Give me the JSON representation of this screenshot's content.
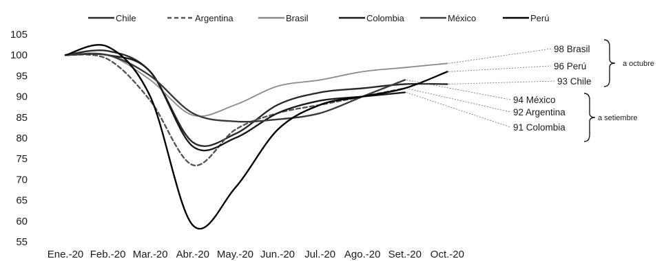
{
  "chart_data": {
    "type": "line",
    "categories": [
      "Ene.-20",
      "Feb.-20",
      "Mar.-20",
      "Abr.-20",
      "May.-20",
      "Jun.-20",
      "Jul.-20",
      "Ago.-20",
      "Set.-20",
      "Oct.-20"
    ],
    "ylim": [
      55,
      105
    ],
    "yticks": [
      55,
      60,
      65,
      70,
      75,
      80,
      85,
      90,
      95,
      100,
      105
    ],
    "grid": false,
    "legend_position": "top",
    "series": [
      {
        "name": "Chile",
        "color": "#2a2a2a",
        "dash": "",
        "values": [
          100,
          101,
          96,
          79,
          81,
          88,
          91,
          92,
          93,
          93
        ]
      },
      {
        "name": "Argentina",
        "color": "#555555",
        "dash": "6 4",
        "values": [
          100,
          99,
          89,
          73.5,
          82,
          86,
          88,
          90,
          92,
          null
        ]
      },
      {
        "name": "Brasil",
        "color": "#8a8a8a",
        "dash": "",
        "values": [
          100,
          100,
          94,
          85.5,
          88,
          92.5,
          94,
          96,
          97,
          98
        ]
      },
      {
        "name": "Colombia",
        "color": "#1a1a1a",
        "dash": "",
        "values": [
          100,
          100,
          96,
          78,
          80,
          86,
          89,
          90,
          91,
          null
        ]
      },
      {
        "name": "México",
        "color": "#3a3a3a",
        "dash": "",
        "values": [
          100,
          100,
          95,
          86,
          84,
          84.5,
          86,
          90,
          94,
          null
        ]
      },
      {
        "name": "Perú",
        "color": "#000000",
        "dash": "",
        "values": [
          100,
          102,
          90,
          59,
          68,
          82,
          88,
          90,
          92,
          96
        ]
      }
    ],
    "annotations": [
      {
        "value": "98",
        "name": "Brasil",
        "series": "Brasil"
      },
      {
        "value": "96",
        "name": "Perú",
        "series": "Perú"
      },
      {
        "value": "93",
        "name": "Chile",
        "series": "Chile"
      },
      {
        "value": "94",
        "name": "México",
        "series": "México"
      },
      {
        "value": "92",
        "name": "Argentina",
        "series": "Argentina"
      },
      {
        "value": "91",
        "name": "Colombia",
        "series": "Colombia"
      }
    ],
    "groups": [
      {
        "label": "a octubre",
        "members": [
          "Brasil",
          "Perú",
          "Chile"
        ]
      },
      {
        "label": "a setiembre",
        "members": [
          "México",
          "Argentina",
          "Colombia"
        ]
      }
    ]
  }
}
